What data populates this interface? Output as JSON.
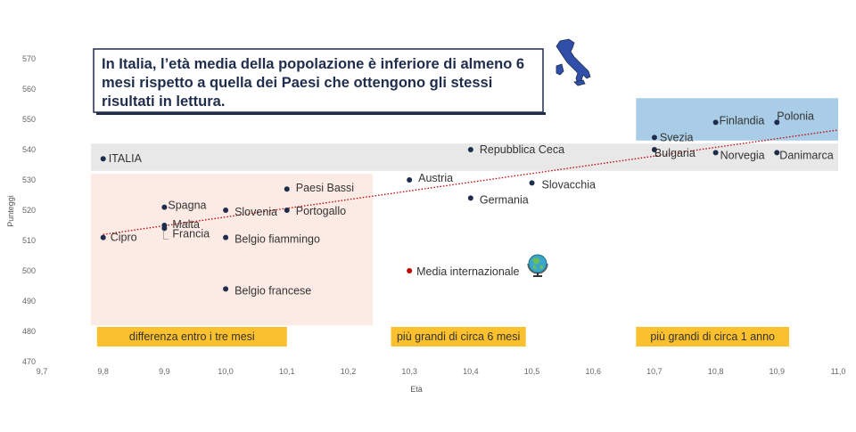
{
  "callout": {
    "lines": [
      "In Italia, l’età media della popolazione è inferiore di almeno 6",
      "mesi rispetto a quella dei Paesi che ottengono gli stessi",
      "risultati in lettura."
    ],
    "icon": "italy-map-icon"
  },
  "chart_data": {
    "type": "scatter",
    "xlabel": "Età",
    "ylabel": "Punteggi",
    "xlim": [
      9.7,
      11.0
    ],
    "ylim": [
      470,
      570
    ],
    "x_ticks": [
      "9,7",
      "9,8",
      "9,9",
      "10,0",
      "10,1",
      "10,2",
      "10,3",
      "10,4",
      "10,5",
      "10,6",
      "10,7",
      "10,8",
      "10,9",
      "11,0"
    ],
    "y_ticks": [
      "470",
      "480",
      "490",
      "500",
      "510",
      "520",
      "530",
      "540",
      "550",
      "560",
      "570"
    ],
    "points": [
      {
        "label": "ITALIA",
        "x": 9.8,
        "y": 537
      },
      {
        "label": "Cipro",
        "x": 9.8,
        "y": 511
      },
      {
        "label": "Spagna",
        "x": 9.9,
        "y": 521
      },
      {
        "label": "Malta",
        "x": 9.9,
        "y": 515
      },
      {
        "label": "Francia",
        "x": 9.9,
        "y": 514
      },
      {
        "label": "Slovenia",
        "x": 10.0,
        "y": 520
      },
      {
        "label": "Belgio fiammingo",
        "x": 10.0,
        "y": 511
      },
      {
        "label": "Belgio francese",
        "x": 10.0,
        "y": 494
      },
      {
        "label": "Paesi Bassi",
        "x": 10.1,
        "y": 527
      },
      {
        "label": "Portogallo",
        "x": 10.1,
        "y": 520
      },
      {
        "label": "Repubblica Ceca",
        "x": 10.4,
        "y": 540
      },
      {
        "label": "Austria",
        "x": 10.3,
        "y": 530
      },
      {
        "label": "Germania",
        "x": 10.4,
        "y": 524
      },
      {
        "label": "Slovacchia",
        "x": 10.5,
        "y": 529
      },
      {
        "label": "Media internazionale",
        "x": 10.3,
        "y": 500,
        "highlight": true
      },
      {
        "label": "Svezia",
        "x": 10.7,
        "y": 544
      },
      {
        "label": "Bulgaria",
        "x": 10.7,
        "y": 540
      },
      {
        "label": "Finlandia",
        "x": 10.8,
        "y": 549
      },
      {
        "label": "Norvegia",
        "x": 10.8,
        "y": 539
      },
      {
        "label": "Polonia",
        "x": 10.9,
        "y": 549
      },
      {
        "label": "Danimarca",
        "x": 10.9,
        "y": 539
      }
    ],
    "trendline": {
      "x0": 9.8,
      "y0": 512,
      "x1": 11.0,
      "y1": 546.5,
      "style": "dotted",
      "color": "#c00000"
    },
    "regions": [
      {
        "name": "lower-age-region",
        "x0": 9.78,
        "x1": 10.24,
        "y0": 482,
        "y1": 532,
        "color": "#fcebe4"
      },
      {
        "name": "italy-score-band",
        "x0": 9.78,
        "x1": 11.0,
        "y0": 533,
        "y1": 542,
        "color": "#e8e8e8"
      },
      {
        "name": "top-region",
        "x0": 10.67,
        "x1": 11.0,
        "y0": 543,
        "y1": 557,
        "color": "#a9cde6"
      }
    ],
    "bands": [
      {
        "label": "differenza entro i tre mesi",
        "x0": 9.79,
        "x1": 10.1
      },
      {
        "label": "più grandi di circa 6 mesi",
        "x0": 10.27,
        "x1": 10.49
      },
      {
        "label": "più grandi di circa 1 anno",
        "x0": 10.67,
        "x1": 10.92
      }
    ],
    "colors": {
      "point": "#1f2d4d",
      "highlight": "#c00000",
      "band": "#fbc02d",
      "callout_border": "#1f2d4d"
    },
    "globe_icon": "globe-icon"
  }
}
